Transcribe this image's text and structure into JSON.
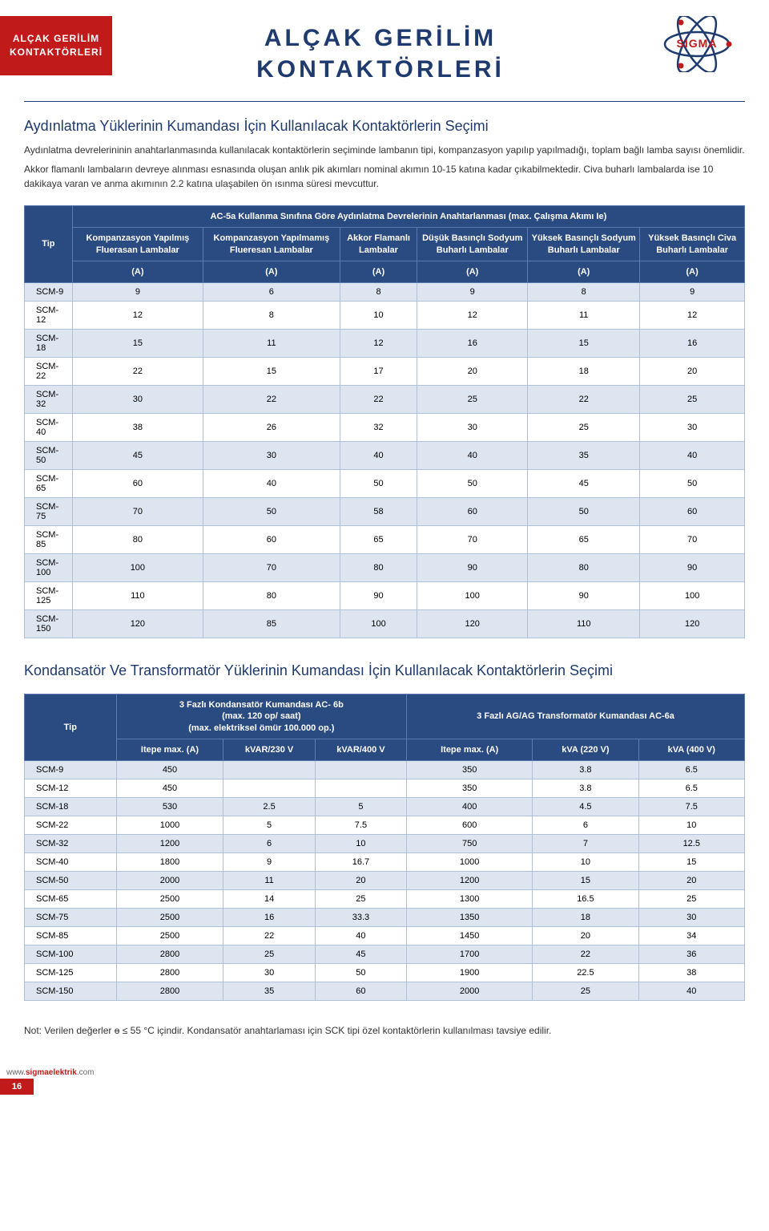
{
  "header": {
    "badge_line1": "ALÇAK GERİLİM",
    "badge_line2": "KONTAKTÖRLERİ",
    "title_line1": "ALÇAK GERİLİM",
    "title_line2": "KONTAKTÖRLERİ",
    "logo_text": "SIGMA"
  },
  "section1": {
    "title": "Aydınlatma Yüklerinin Kumandası İçin Kullanılacak Kontaktörlerin Seçimi",
    "p1": "Aydınlatma devrelerininin anahtarlanmasında kullanılacak kontaktörlerin seçiminde lambanın tipi, kompanzasyon yapılıp yapılmadığı, toplam bağlı lamba sayısı önemlidir.",
    "p2": "Akkor flamanlı lambaların devreye alınması esnasında oluşan anlık pik akımları nominal akımın 10-15 katına kadar çıkabilmektedir. Civa buharlı lambalarda ise 10 dakikaya varan ve anma akımının 2.2 katına ulaşabilen ön ısınma süresi mevcuttur."
  },
  "table1": {
    "type": "table",
    "header_bg": "#2a4a82",
    "row_even_bg": "#dce5f0",
    "row_odd_bg": "#ffffff",
    "border_color": "#b0c0d8",
    "spanner": "AC-5a Kullanma Sınıfına Göre Aydınlatma Devrelerinin Anahtarlanması (max. Çalışma Akımı Ie)",
    "tip_label": "Tip",
    "unit_label": "(A)",
    "col_headers": [
      "Kompanzasyon Yapılmış Fluerasan Lambalar",
      "Kompanzasyon Yapılmamış Flueresan Lambalar",
      "Akkor Flamanlı Lambalar",
      "Düşük Basınçlı Sodyum Buharlı Lambalar",
      "Yüksek Basınçlı Sodyum Buharlı Lambalar",
      "Yüksek Basınçlı Civa Buharlı Lambalar"
    ],
    "rows": [
      [
        "SCM-9",
        "9",
        "6",
        "8",
        "9",
        "8",
        "9"
      ],
      [
        "SCM-12",
        "12",
        "8",
        "10",
        "12",
        "11",
        "12"
      ],
      [
        "SCM-18",
        "15",
        "11",
        "12",
        "16",
        "15",
        "16"
      ],
      [
        "SCM-22",
        "22",
        "15",
        "17",
        "20",
        "18",
        "20"
      ],
      [
        "SCM-32",
        "30",
        "22",
        "22",
        "25",
        "22",
        "25"
      ],
      [
        "SCM-40",
        "38",
        "26",
        "32",
        "30",
        "25",
        "30"
      ],
      [
        "SCM-50",
        "45",
        "30",
        "40",
        "40",
        "35",
        "40"
      ],
      [
        "SCM-65",
        "60",
        "40",
        "50",
        "50",
        "45",
        "50"
      ],
      [
        "SCM-75",
        "70",
        "50",
        "58",
        "60",
        "50",
        "60"
      ],
      [
        "SCM-85",
        "80",
        "60",
        "65",
        "70",
        "65",
        "70"
      ],
      [
        "SCM-100",
        "100",
        "70",
        "80",
        "90",
        "80",
        "90"
      ],
      [
        "SCM-125",
        "110",
        "80",
        "90",
        "100",
        "90",
        "100"
      ],
      [
        "SCM-150",
        "120",
        "85",
        "100",
        "120",
        "110",
        "120"
      ]
    ]
  },
  "section2": {
    "title": "Kondansatör Ve Transformatör Yüklerinin Kumandası İçin Kullanılacak Kontaktörlerin Seçimi"
  },
  "table2": {
    "type": "table",
    "header_bg": "#2a4a82",
    "row_even_bg": "#dce5f0",
    "row_odd_bg": "#ffffff",
    "border_color": "#b0c0d8",
    "tip_label": "Tip",
    "spanner_left_l1": "3 Fazlı Kondansatör Kumandası AC- 6b",
    "spanner_left_l2": "(max.  120 op/ saat)",
    "spanner_left_l3": "(max. elektriksel ömür 100.000 op.)",
    "spanner_right": "3 Fazlı AG/AG  Transformatör Kumandası AC-6a",
    "sub_headers": [
      "Itepe max. (A)",
      "kVAR/230 V",
      "kVAR/400 V",
      "Itepe max. (A)",
      "kVA (220 V)",
      "kVA (400 V)"
    ],
    "rows": [
      [
        "SCM-9",
        "450",
        "",
        "",
        "350",
        "3.8",
        "6.5"
      ],
      [
        "SCM-12",
        "450",
        "",
        "",
        "350",
        "3.8",
        "6.5"
      ],
      [
        "SCM-18",
        "530",
        "2.5",
        "5",
        "400",
        "4.5",
        "7.5"
      ],
      [
        "SCM-22",
        "1000",
        "5",
        "7.5",
        "600",
        "6",
        "10"
      ],
      [
        "SCM-32",
        "1200",
        "6",
        "10",
        "750",
        "7",
        "12.5"
      ],
      [
        "SCM-40",
        "1800",
        "9",
        "16.7",
        "1000",
        "10",
        "15"
      ],
      [
        "SCM-50",
        "2000",
        "11",
        "20",
        "1200",
        "15",
        "20"
      ],
      [
        "SCM-65",
        "2500",
        "14",
        "25",
        "1300",
        "16.5",
        "25"
      ],
      [
        "SCM-75",
        "2500",
        "16",
        "33.3",
        "1350",
        "18",
        "30"
      ],
      [
        "SCM-85",
        "2500",
        "22",
        "40",
        "1450",
        "20",
        "34"
      ],
      [
        "SCM-100",
        "2800",
        "25",
        "45",
        "1700",
        "22",
        "36"
      ],
      [
        "SCM-125",
        "2800",
        "30",
        "50",
        "1900",
        "22.5",
        "38"
      ],
      [
        "SCM-150",
        "2800",
        "35",
        "60",
        "2000",
        "25",
        "40"
      ]
    ]
  },
  "note": "Not: Verilen değerler ɵ ≤ 55 °C içindir. Kondansatör anahtarlaması için SCK tipi özel kontaktörlerin kullanılması tavsiye edilir.",
  "footer": {
    "url_pre": "www.",
    "url_accent": "sigmaelektrik",
    "url_post": ".com",
    "page": "16"
  }
}
